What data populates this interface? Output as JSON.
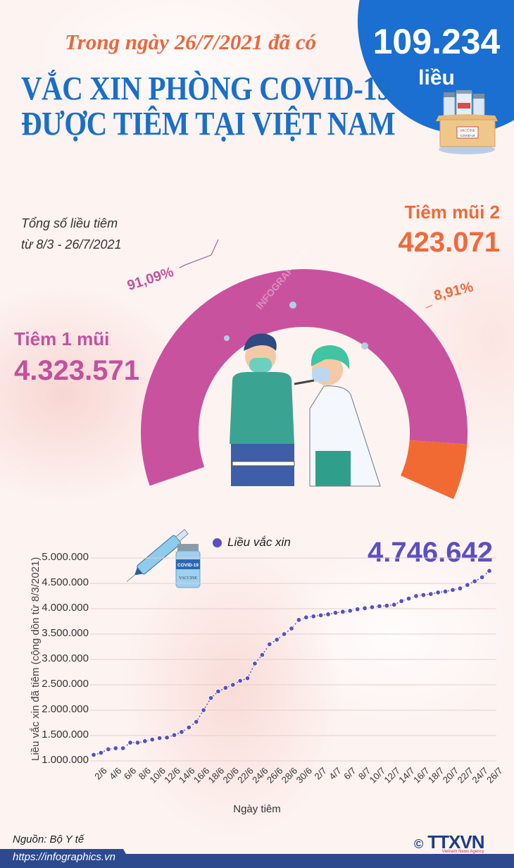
{
  "header": {
    "subtitle": "Trong ngày 26/7/2021 đã có",
    "title_line1": "VẮC XIN PHÒNG COVID-19",
    "title_line2": "ĐƯỢC TIÊM TẠI VIỆT NAM",
    "daily_count": "109.234",
    "daily_unit": "liều",
    "box_label": "VACCINE",
    "box_sublabel": "COVID-19"
  },
  "summary": {
    "total_label_line1": "Tổng số liều tiêm",
    "total_label_line2": "từ 8/3 - 26/7/2021",
    "dose1_label": "Tiêm 1 mũi",
    "dose1_value": "4.323.571",
    "dose1_pct": "91,09%",
    "dose2_label": "Tiêm mũi 2",
    "dose2_value": "423.071",
    "dose2_pct": "8,91%",
    "colors": {
      "dose1": "#c9529f",
      "dose2": "#f26a33"
    }
  },
  "line_chart": {
    "legend_label": "Liều vắc xin",
    "total_value": "4.746.642",
    "vial_label": "COVID-19",
    "vial_sublabel": "VACCINE"
  },
  "chart_data": [
    {
      "type": "pie",
      "title": "Tổng số liều tiêm từ 8/3 - 26/7/2021",
      "style": "semi-donut",
      "categories": [
        "Tiêm 1 mũi",
        "Tiêm mũi 2"
      ],
      "values": [
        4323571,
        423071
      ],
      "percentages": [
        91.09,
        8.91
      ],
      "colors": [
        "#c9529f",
        "#f26a33"
      ]
    },
    {
      "type": "line",
      "title": "Liều vắc xin",
      "xlabel": "Ngày tiêm",
      "ylabel": "Liều vắc xin đã tiêm (cộng dồn từ 8/3/2021)",
      "ylim": [
        1000000,
        5000000
      ],
      "yticks": [
        "1.000.000",
        "1.500.000",
        "2.000.000",
        "2.500.000",
        "3.000.000",
        "3.500.000",
        "4.000.000",
        "4.500.000",
        "5.000.000"
      ],
      "xtick_labels": [
        "2/6",
        "4/6",
        "6/6",
        "8/6",
        "10/6",
        "12/6",
        "14/6",
        "16/6",
        "18/6",
        "20/6",
        "22/6",
        "24/6",
        "26/6",
        "28/6",
        "30/6",
        "2/7",
        "4/7",
        "6/7",
        "8/7",
        "10/7",
        "12/7",
        "14/7",
        "16/7",
        "18/7",
        "20/7",
        "22/7",
        "24/7",
        "26/7"
      ],
      "grid": true,
      "legend_position": "top",
      "annotation": "4.746.642",
      "color": "#5b4fc2",
      "x": [
        "2/6",
        "3/6",
        "4/6",
        "5/6",
        "6/6",
        "7/6",
        "8/6",
        "9/6",
        "10/6",
        "11/6",
        "12/6",
        "13/6",
        "14/6",
        "15/6",
        "16/6",
        "17/6",
        "18/6",
        "19/6",
        "20/6",
        "21/6",
        "22/6",
        "23/6",
        "24/6",
        "25/6",
        "26/6",
        "27/6",
        "28/6",
        "29/6",
        "30/6",
        "1/7",
        "2/7",
        "3/7",
        "4/7",
        "5/7",
        "6/7",
        "7/7",
        "8/7",
        "9/7",
        "10/7",
        "11/7",
        "12/7",
        "13/7",
        "14/7",
        "15/7",
        "16/7",
        "17/7",
        "18/7",
        "19/7",
        "20/7",
        "21/7",
        "22/7",
        "23/7",
        "24/7",
        "25/7",
        "26/7"
      ],
      "series": [
        {
          "name": "Liều vắc xin",
          "values": [
            1120000,
            1160000,
            1230000,
            1250000,
            1250000,
            1360000,
            1360000,
            1390000,
            1420000,
            1450000,
            1460000,
            1510000,
            1570000,
            1660000,
            1770000,
            2000000,
            2240000,
            2370000,
            2440000,
            2500000,
            2580000,
            2630000,
            2920000,
            3090000,
            3300000,
            3390000,
            3500000,
            3610000,
            3780000,
            3830000,
            3850000,
            3870000,
            3890000,
            3920000,
            3940000,
            3960000,
            3990000,
            4010000,
            4030000,
            4050000,
            4060000,
            4080000,
            4150000,
            4200000,
            4250000,
            4270000,
            4290000,
            4320000,
            4340000,
            4370000,
            4400000,
            4470000,
            4540000,
            4620000,
            4746642
          ]
        }
      ]
    }
  ],
  "footer": {
    "source": "Nguồn: Bộ Y tế",
    "url": "https://infographics.vn",
    "logo_copyright": "©",
    "logo_text": "TTXVN",
    "logo_subtext": "Vietnam News Agency"
  }
}
